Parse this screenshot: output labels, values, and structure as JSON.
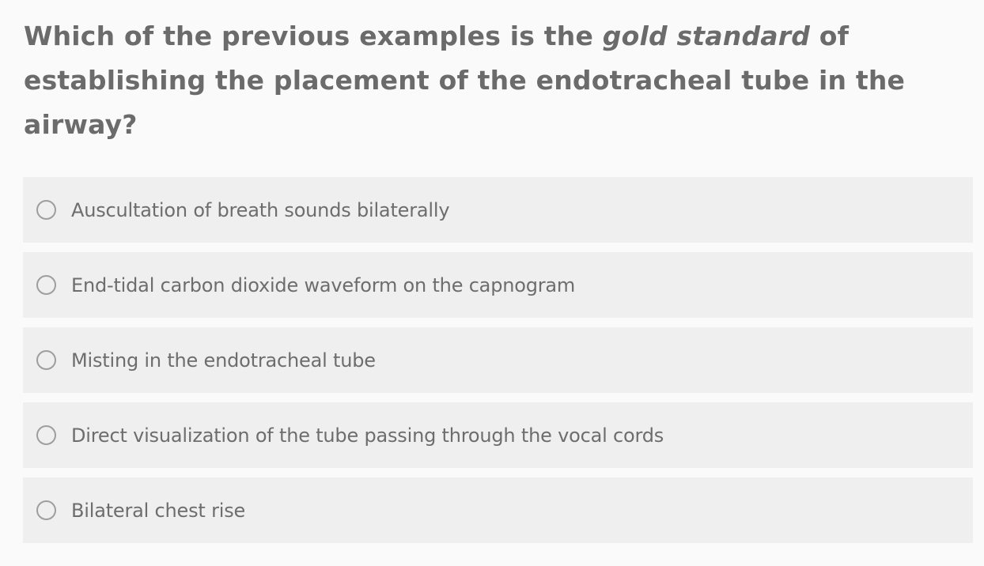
{
  "question": {
    "part1": "Which of the previous examples is the ",
    "emphasis": "gold standard",
    "part2": " of establishing the placement of the endotracheal tube in the airway?"
  },
  "options": [
    {
      "label": "Auscultation of breath sounds bilaterally",
      "selected": false
    },
    {
      "label": "End-tidal carbon dioxide waveform on the capnogram",
      "selected": false
    },
    {
      "label": "Misting in the endotracheal tube",
      "selected": false
    },
    {
      "label": "Direct visualization of the tube passing through the vocal cords",
      "selected": false
    },
    {
      "label": "Bilateral chest rise",
      "selected": false
    }
  ],
  "colors": {
    "background": "#fafafa",
    "option_background": "#efefef",
    "question_text": "#6b6b6b",
    "option_text": "#6d6d6d",
    "radio_border": "#9e9e9e"
  }
}
